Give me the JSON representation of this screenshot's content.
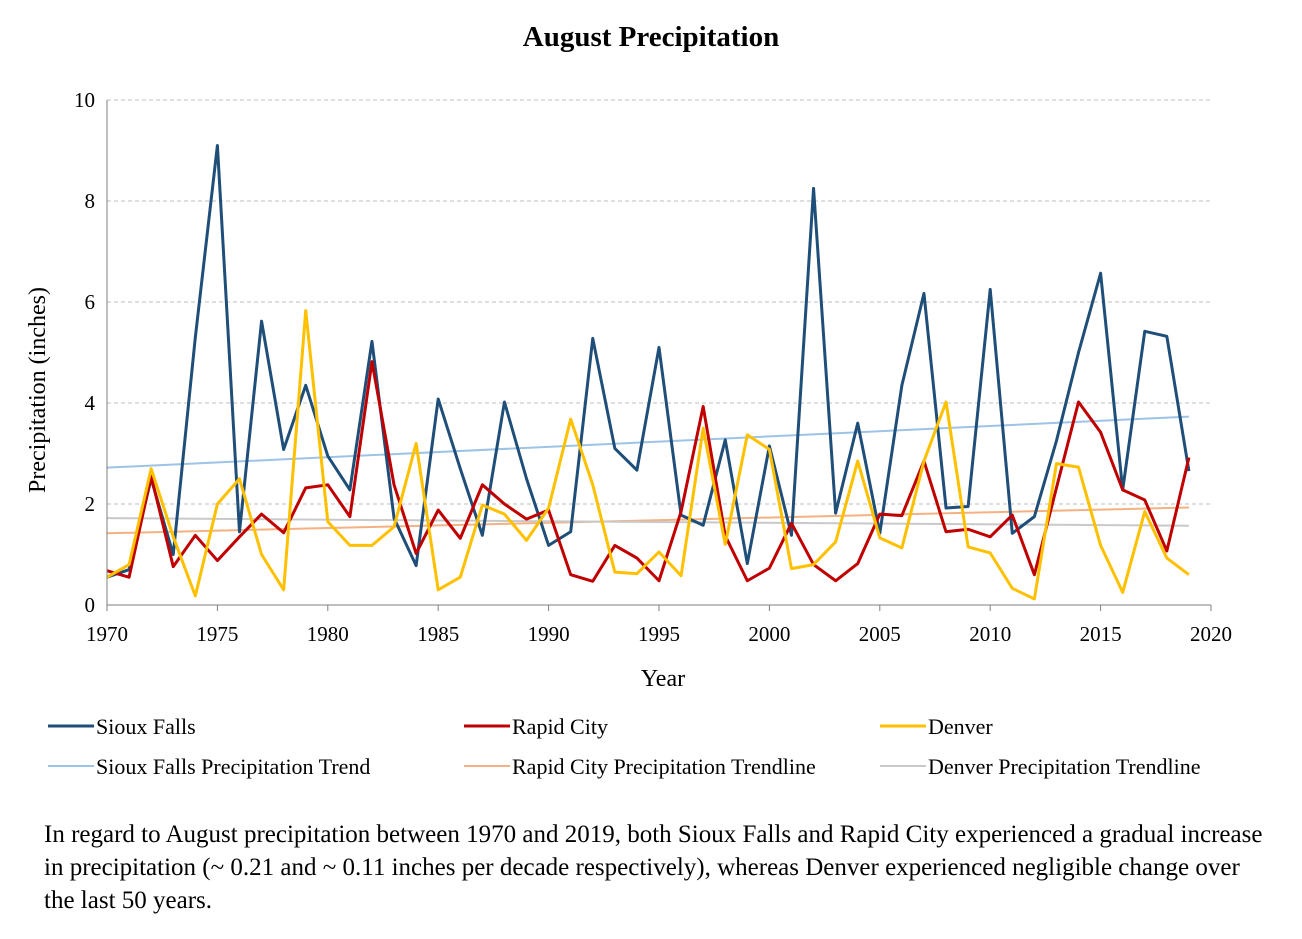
{
  "chart_data": {
    "type": "line",
    "title": "August Precipitation",
    "xlabel": "Year",
    "ylabel": "Precipitation (inches)",
    "xlim": [
      1970,
      2020
    ],
    "ylim": [
      0,
      10
    ],
    "x_ticks": [
      1970,
      1975,
      1980,
      1985,
      1990,
      1995,
      2000,
      2005,
      2010,
      2015,
      2020
    ],
    "y_ticks": [
      0,
      2,
      4,
      6,
      8,
      10
    ],
    "grid": "horizontal-dashed",
    "legend_position": "bottom",
    "x": [
      1970,
      1971,
      1972,
      1973,
      1974,
      1975,
      1976,
      1977,
      1978,
      1979,
      1980,
      1981,
      1982,
      1983,
      1984,
      1985,
      1986,
      1987,
      1988,
      1989,
      1990,
      1991,
      1992,
      1993,
      1994,
      1995,
      1996,
      1997,
      1998,
      1999,
      2000,
      2001,
      2002,
      2003,
      2004,
      2005,
      2006,
      2007,
      2008,
      2009,
      2010,
      2011,
      2012,
      2013,
      2014,
      2015,
      2016,
      2017,
      2018,
      2019
    ],
    "series": [
      {
        "name": "Sioux Falls",
        "color": "#1f4e79",
        "width": 3,
        "values": [
          0.55,
          0.7,
          2.5,
          1.0,
          5.3,
          9.1,
          1.45,
          5.62,
          3.08,
          4.35,
          2.95,
          2.28,
          5.22,
          1.72,
          0.78,
          4.08,
          2.7,
          1.38,
          4.02,
          2.5,
          1.18,
          1.45,
          5.28,
          3.1,
          2.67,
          5.1,
          1.78,
          1.58,
          3.27,
          0.82,
          3.15,
          1.38,
          8.25,
          1.82,
          3.6,
          1.42,
          4.35,
          6.17,
          1.92,
          1.95,
          6.25,
          1.42,
          1.75,
          3.25,
          5.0,
          6.57,
          2.28,
          5.42,
          5.32,
          2.65
        ]
      },
      {
        "name": "Rapid City",
        "color": "#c00000",
        "width": 3,
        "values": [
          0.68,
          0.55,
          2.55,
          0.76,
          1.38,
          0.88,
          1.35,
          1.8,
          1.43,
          2.32,
          2.38,
          1.75,
          4.82,
          2.38,
          1.02,
          1.88,
          1.32,
          2.38,
          2.0,
          1.7,
          1.88,
          0.6,
          0.47,
          1.18,
          0.93,
          0.48,
          1.85,
          3.93,
          1.37,
          0.48,
          0.73,
          1.62,
          0.8,
          0.48,
          0.82,
          1.8,
          1.77,
          2.85,
          1.45,
          1.5,
          1.35,
          1.78,
          0.6,
          2.32,
          4.02,
          3.42,
          2.28,
          2.08,
          1.07,
          2.92
        ]
      },
      {
        "name": "Denver",
        "color": "#ffc000",
        "width": 3,
        "values": [
          0.55,
          0.8,
          2.7,
          1.35,
          0.18,
          2.0,
          2.5,
          1.0,
          0.3,
          5.83,
          1.65,
          1.18,
          1.18,
          1.55,
          3.2,
          0.3,
          0.55,
          1.98,
          1.8,
          1.28,
          1.92,
          3.68,
          2.38,
          0.65,
          0.62,
          1.05,
          0.58,
          3.5,
          1.2,
          3.37,
          3.08,
          0.72,
          0.8,
          1.25,
          2.85,
          1.33,
          1.13,
          2.85,
          4.02,
          1.15,
          1.03,
          0.33,
          0.12,
          2.8,
          2.73,
          1.18,
          0.25,
          1.85,
          0.93,
          0.6
        ]
      },
      {
        "name": "Sioux Falls Precipitation Trend",
        "color": "#9dc3e6",
        "width": 2,
        "trend": [
          2.72,
          3.73
        ]
      },
      {
        "name": "Rapid City Precipitation Trendline",
        "color": "#f4b183",
        "width": 2,
        "trend": [
          1.42,
          1.93
        ]
      },
      {
        "name": "Denver Precipitation Trendline",
        "color": "#c9c9c9",
        "width": 2,
        "trend": [
          1.72,
          1.57
        ]
      }
    ]
  },
  "caption": "In regard to August precipitation between 1970 and 2019, both Sioux Falls and Rapid City experienced a gradual increase in precipitation (~ 0.21 and ~ 0.11 inches per decade respectively), whereas Denver experienced negligible change over the last 50 years."
}
